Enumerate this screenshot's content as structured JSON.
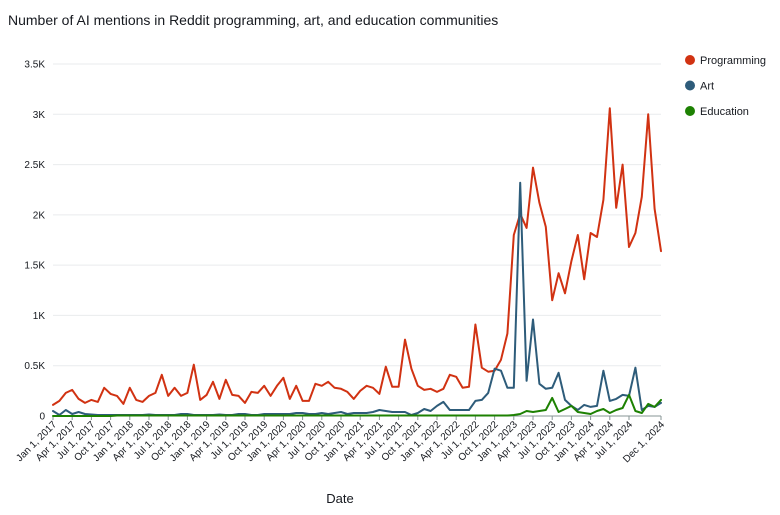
{
  "chart_data": {
    "type": "line",
    "title": "Number of AI mentions in Reddit programming, art, and education communities",
    "xlabel": "Date",
    "ylabel": "",
    "ylim": [
      0,
      3500
    ],
    "yticks": [
      {
        "value": 0,
        "label": "0"
      },
      {
        "value": 500,
        "label": "0.5K"
      },
      {
        "value": 1000,
        "label": "1K"
      },
      {
        "value": 1500,
        "label": "1.5K"
      },
      {
        "value": 2000,
        "label": "2K"
      },
      {
        "value": 2500,
        "label": "2.5K"
      },
      {
        "value": 3000,
        "label": "3K"
      },
      {
        "value": 3500,
        "label": "3.5K"
      }
    ],
    "xticks": [
      {
        "date": "2017-01",
        "label": "Jan 1, 2017"
      },
      {
        "date": "2017-04",
        "label": "Apr 1, 2017"
      },
      {
        "date": "2017-07",
        "label": "Jul 1, 2017"
      },
      {
        "date": "2017-10",
        "label": "Oct 1, 2017"
      },
      {
        "date": "2018-01",
        "label": "Jan 1, 2018"
      },
      {
        "date": "2018-04",
        "label": "Apr 1, 2018"
      },
      {
        "date": "2018-07",
        "label": "Jul 1, 2018"
      },
      {
        "date": "2018-10",
        "label": "Oct 1, 2018"
      },
      {
        "date": "2019-01",
        "label": "Jan 1, 2019"
      },
      {
        "date": "2019-04",
        "label": "Apr 1, 2019"
      },
      {
        "date": "2019-07",
        "label": "Jul 1, 2019"
      },
      {
        "date": "2019-10",
        "label": "Oct 1, 2019"
      },
      {
        "date": "2020-01",
        "label": "Jan 1, 2020"
      },
      {
        "date": "2020-04",
        "label": "Apr 1, 2020"
      },
      {
        "date": "2020-07",
        "label": "Jul 1, 2020"
      },
      {
        "date": "2020-10",
        "label": "Oct 1, 2020"
      },
      {
        "date": "2021-01",
        "label": "Jan 1, 2021"
      },
      {
        "date": "2021-04",
        "label": "Apr 1, 2021"
      },
      {
        "date": "2021-07",
        "label": "Jul 1, 2021"
      },
      {
        "date": "2021-10",
        "label": "Oct 1, 2021"
      },
      {
        "date": "2022-01",
        "label": "Jan 1, 2022"
      },
      {
        "date": "2022-04",
        "label": "Apr 1, 2022"
      },
      {
        "date": "2022-07",
        "label": "Jul 1, 2022"
      },
      {
        "date": "2022-10",
        "label": "Oct 1, 2022"
      },
      {
        "date": "2023-01",
        "label": "Jan 1, 2023"
      },
      {
        "date": "2023-04",
        "label": "Apr 1, 2023"
      },
      {
        "date": "2023-07",
        "label": "Jul 1, 2023"
      },
      {
        "date": "2023-10",
        "label": "Oct 1, 2023"
      },
      {
        "date": "2024-01",
        "label": "Jan 1, 2024"
      },
      {
        "date": "2024-04",
        "label": "Apr 1, 2024"
      },
      {
        "date": "2024-07",
        "label": "Jul 1, 2024"
      },
      {
        "date": "2024-12",
        "label": "Dec 1, 2024"
      }
    ],
    "x": [
      "2017-01",
      "2017-02",
      "2017-03",
      "2017-04",
      "2017-05",
      "2017-06",
      "2017-07",
      "2017-08",
      "2017-09",
      "2017-10",
      "2017-11",
      "2017-12",
      "2018-01",
      "2018-02",
      "2018-03",
      "2018-04",
      "2018-05",
      "2018-06",
      "2018-07",
      "2018-08",
      "2018-09",
      "2018-10",
      "2018-11",
      "2018-12",
      "2019-01",
      "2019-02",
      "2019-03",
      "2019-04",
      "2019-05",
      "2019-06",
      "2019-07",
      "2019-08",
      "2019-09",
      "2019-10",
      "2019-11",
      "2019-12",
      "2020-01",
      "2020-02",
      "2020-03",
      "2020-04",
      "2020-05",
      "2020-06",
      "2020-07",
      "2020-08",
      "2020-09",
      "2020-10",
      "2020-11",
      "2020-12",
      "2021-01",
      "2021-02",
      "2021-03",
      "2021-04",
      "2021-05",
      "2021-06",
      "2021-07",
      "2021-08",
      "2021-09",
      "2021-10",
      "2021-11",
      "2021-12",
      "2022-01",
      "2022-02",
      "2022-03",
      "2022-04",
      "2022-05",
      "2022-06",
      "2022-07",
      "2022-08",
      "2022-09",
      "2022-10",
      "2022-11",
      "2022-12",
      "2023-01",
      "2023-02",
      "2023-03",
      "2023-04",
      "2023-05",
      "2023-06",
      "2023-07",
      "2023-08",
      "2023-09",
      "2023-10",
      "2023-11",
      "2023-12",
      "2024-01",
      "2024-02",
      "2024-03",
      "2024-04",
      "2024-05",
      "2024-06",
      "2024-07",
      "2024-08",
      "2024-09",
      "2024-10",
      "2024-11",
      "2024-12"
    ],
    "series": [
      {
        "name": "Programming",
        "color": "#d13212",
        "values": [
          110,
          150,
          230,
          260,
          170,
          130,
          160,
          140,
          280,
          220,
          200,
          120,
          280,
          160,
          140,
          200,
          230,
          410,
          200,
          280,
          200,
          230,
          510,
          160,
          210,
          340,
          170,
          360,
          210,
          200,
          130,
          240,
          230,
          300,
          200,
          300,
          380,
          170,
          300,
          150,
          150,
          320,
          300,
          340,
          280,
          270,
          240,
          170,
          250,
          300,
          280,
          220,
          490,
          290,
          290,
          760,
          470,
          300,
          260,
          270,
          240,
          270,
          410,
          390,
          280,
          290,
          910,
          480,
          440,
          450,
          560,
          820,
          1800,
          2010,
          1870,
          2470,
          2120,
          1880,
          1150,
          1420,
          1220,
          1540,
          1800,
          1360,
          1820,
          1780,
          2150,
          3060,
          2070,
          2500,
          1680,
          1820,
          2180,
          3000,
          2060,
          1640
        ]
      },
      {
        "name": "Art",
        "color": "#2e5c7a",
        "values": [
          50,
          10,
          60,
          20,
          40,
          20,
          15,
          10,
          10,
          10,
          10,
          10,
          10,
          10,
          10,
          15,
          10,
          10,
          10,
          10,
          20,
          20,
          10,
          10,
          10,
          10,
          15,
          10,
          10,
          20,
          20,
          10,
          10,
          20,
          20,
          20,
          20,
          20,
          30,
          30,
          20,
          20,
          30,
          20,
          30,
          40,
          20,
          30,
          30,
          30,
          40,
          60,
          50,
          40,
          40,
          40,
          10,
          30,
          70,
          50,
          100,
          140,
          60,
          60,
          60,
          60,
          150,
          160,
          230,
          470,
          450,
          280,
          280,
          2320,
          350,
          960,
          320,
          270,
          280,
          430,
          160,
          100,
          60,
          110,
          90,
          100,
          450,
          150,
          170,
          210,
          200,
          480,
          60,
          100,
          90,
          130
        ]
      },
      {
        "name": "Education",
        "color": "#1d8102",
        "values": [
          0,
          0,
          0,
          0,
          0,
          0,
          0,
          0,
          0,
          0,
          5,
          5,
          5,
          5,
          5,
          5,
          5,
          5,
          5,
          5,
          5,
          5,
          5,
          5,
          5,
          5,
          5,
          5,
          5,
          5,
          5,
          5,
          5,
          5,
          5,
          5,
          5,
          5,
          5,
          5,
          5,
          5,
          5,
          5,
          5,
          5,
          5,
          5,
          5,
          5,
          5,
          5,
          5,
          5,
          5,
          5,
          5,
          5,
          5,
          5,
          5,
          5,
          5,
          5,
          5,
          5,
          5,
          5,
          5,
          5,
          5,
          5,
          10,
          20,
          50,
          40,
          50,
          60,
          180,
          40,
          70,
          100,
          40,
          30,
          20,
          50,
          70,
          30,
          60,
          80,
          210,
          50,
          30,
          120,
          90,
          160
        ]
      }
    ],
    "legend_position": "right",
    "grid": "horizontal"
  }
}
